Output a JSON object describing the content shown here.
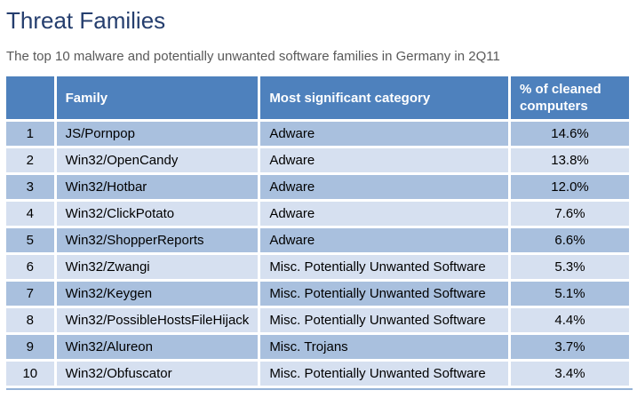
{
  "page": {
    "title": "Threat Families",
    "subtitle": "The top 10 malware and potentially unwanted software families in Germany in 2Q11"
  },
  "chart_data": {
    "type": "table",
    "title": "Threat Families",
    "subtitle": "The top 10 malware and potentially unwanted software families in Germany in 2Q11",
    "columns": [
      "",
      "Family",
      "Most significant category",
      "% of cleaned computers"
    ],
    "rows": [
      [
        "1",
        "JS/Pornpop",
        "Adware",
        "14.6%"
      ],
      [
        "2",
        "Win32/OpenCandy",
        "Adware",
        "13.8%"
      ],
      [
        "3",
        "Win32/Hotbar",
        "Adware",
        "12.0%"
      ],
      [
        "4",
        "Win32/ClickPotato",
        "Adware",
        "7.6%"
      ],
      [
        "5",
        "Win32/ShopperReports",
        "Adware",
        "6.6%"
      ],
      [
        "6",
        "Win32/Zwangi",
        "Misc. Potentially Unwanted Software",
        "5.3%"
      ],
      [
        "7",
        "Win32/Keygen",
        "Misc. Potentially Unwanted Software",
        "5.1%"
      ],
      [
        "8",
        "Win32/PossibleHostsFileHijack",
        "Misc. Potentially Unwanted Software",
        "4.4%"
      ],
      [
        "9",
        "Win32/Alureon",
        "Misc. Trojans",
        "3.7%"
      ],
      [
        "10",
        "Win32/Obfuscator",
        "Misc. Potentially Unwanted Software",
        "3.4%"
      ]
    ]
  },
  "colors": {
    "title_text": "#253E6E",
    "subtitle_text": "#595959",
    "header_bg": "#4E81BD",
    "header_text": "#FFFFFF",
    "row_odd_bg": "#A9C0DE",
    "row_even_bg": "#D6E0F0",
    "cell_text": "#000000",
    "bottom_border": "#95B3D7"
  }
}
